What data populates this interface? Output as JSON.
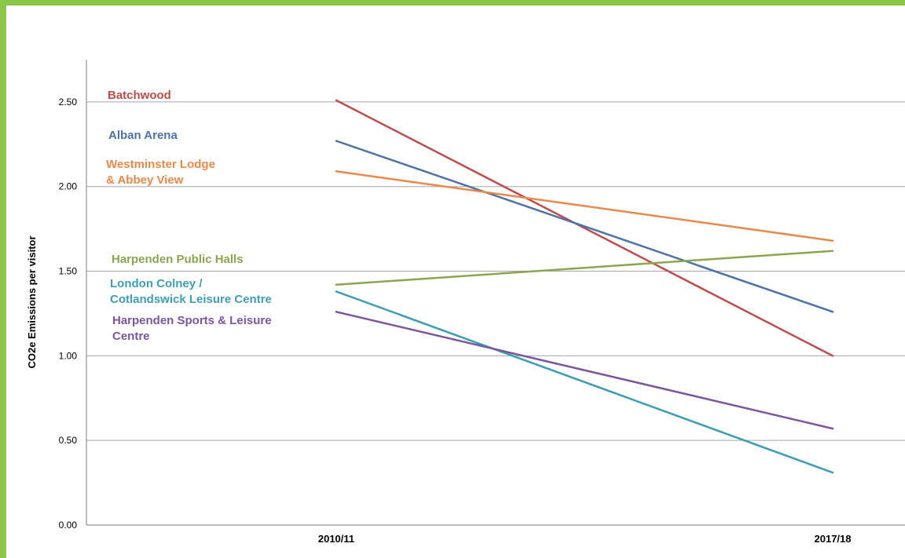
{
  "chart_data": {
    "type": "line",
    "title": "",
    "xlabel": "",
    "ylabel": "CO2e Emissions per visitor",
    "categories": [
      "2010/11",
      "2017/18"
    ],
    "ylim": [
      0,
      2.75
    ],
    "yticks": [
      "0.00",
      "0.50",
      "1.00",
      "1.50",
      "2.00",
      "2.50"
    ],
    "grid": true,
    "legend": "inline-left",
    "series": [
      {
        "name": "Batchwood",
        "name_lines": [
          "Batchwood"
        ],
        "color": "#bf4b4a",
        "values": [
          2.51,
          1.0
        ]
      },
      {
        "name": "Alban Arena",
        "name_lines": [
          "Alban Arena"
        ],
        "color": "#4b73a7",
        "values": [
          2.27,
          1.26
        ]
      },
      {
        "name": "Westminster Lodge & Abbey View",
        "name_lines": [
          "Westminster Lodge",
          "& Abbey View"
        ],
        "color": "#e8894a",
        "values": [
          2.09,
          1.68
        ]
      },
      {
        "name": "Harpenden Public Halls",
        "name_lines": [
          "Harpenden Public Halls"
        ],
        "color": "#8aa64f",
        "values": [
          1.42,
          1.62
        ]
      },
      {
        "name": "London Colney / Cotlandswick Leisure Centre",
        "name_lines": [
          "London Colney /",
          "Cotlandswick Leisure Centre"
        ],
        "color": "#3f9db4",
        "values": [
          1.38,
          0.31
        ]
      },
      {
        "name": "Harpenden Sports & Leisure Centre",
        "name_lines": [
          "Harpenden Sports & Leisure",
          "Centre"
        ],
        "color": "#7b559e",
        "values": [
          1.26,
          0.57
        ]
      }
    ]
  }
}
